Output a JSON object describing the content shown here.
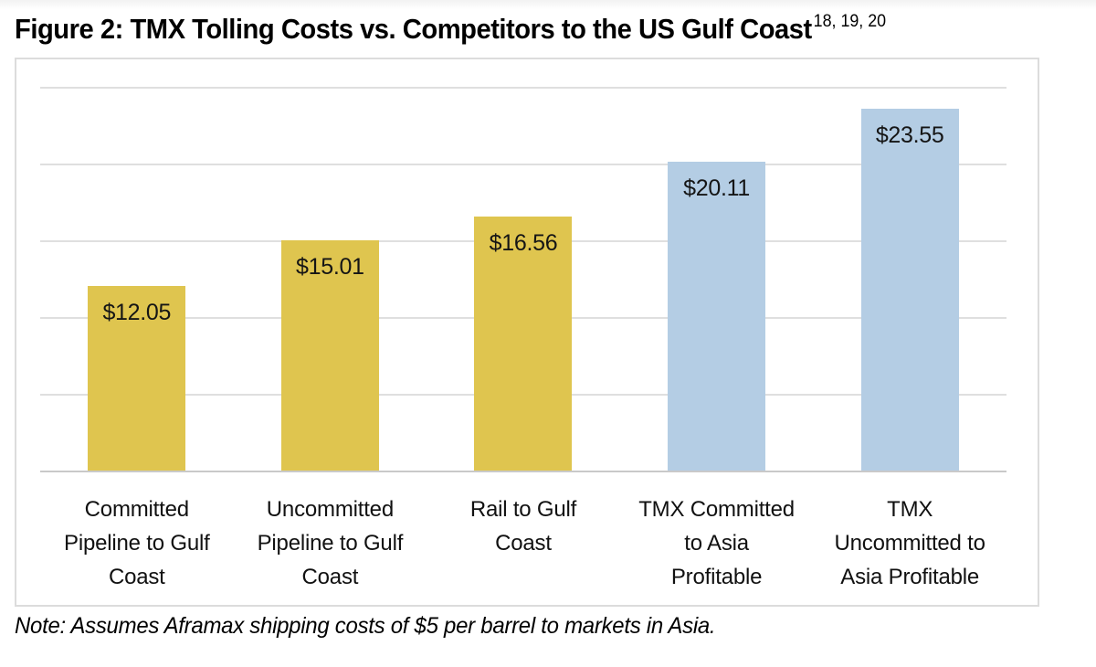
{
  "figure": {
    "title": "Figure 2: TMX Tolling Costs vs. Competitors to the US Gulf Coast",
    "footnote_refs": "18, 19, 20",
    "note": "Note: Assumes Aframax shipping costs of $5 per barrel to markets in Asia."
  },
  "chart_data": {
    "type": "bar",
    "title": "TMX Tolling Costs vs. Competitors to the US Gulf Coast",
    "categories": [
      "Committed Pipeline to Gulf Coast",
      "Uncommitted Pipeline to Gulf Coast",
      "Rail to Gulf Coast",
      "TMX Committed to Asia Profitable",
      "TMX Uncommitted to Asia Profitable"
    ],
    "category_lines": [
      [
        "Committed",
        "Pipeline to Gulf",
        "Coast"
      ],
      [
        "Uncommitted",
        "Pipeline to Gulf",
        "Coast"
      ],
      [
        "Rail to Gulf",
        "Coast"
      ],
      [
        "TMX Committed",
        "to Asia",
        "Profitable"
      ],
      [
        "TMX",
        "Uncommitted to",
        "Asia Profitable"
      ]
    ],
    "values": [
      12.05,
      15.01,
      16.56,
      20.11,
      23.55
    ],
    "value_labels": [
      "$12.05",
      "$15.01",
      "$16.56",
      "$20.11",
      "$23.55"
    ],
    "bar_colors": [
      "#DFC54F",
      "#DFC54F",
      "#DFC54F",
      "#B4CDE4",
      "#B4CDE4"
    ],
    "value_label_position": "inside-top",
    "xlabel": "",
    "ylabel": "",
    "ylim": [
      0,
      25
    ],
    "gridline_step": 5,
    "grid": true,
    "legend": "none"
  },
  "colors": {
    "bar_yellow": "#DFC54F",
    "bar_blue": "#B4CDE4",
    "gridline": "#DFDFDF",
    "axis_line": "#C9C9C9",
    "frame_border": "#DCDCDC",
    "text": "#111111"
  }
}
